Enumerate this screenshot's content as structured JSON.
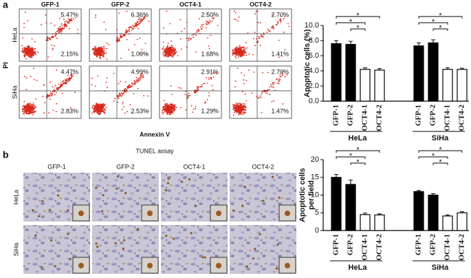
{
  "flow": {
    "label": "a",
    "y_label": "PI",
    "x_label": "Annexin V",
    "col_labels": [
      "GFP-1",
      "GFP-2",
      "OCT4-1",
      "OCT4-2"
    ],
    "row_labels": [
      "HeLa",
      "SiHa"
    ],
    "upper_right": [
      [
        "5.47%",
        "6.36%",
        "2.50%",
        "2.70%"
      ],
      [
        "4.47%",
        "4.99%",
        "2.91%",
        "2.70%"
      ]
    ],
    "lower_right": [
      [
        "2.15%",
        "1.09%",
        "1.68%",
        "1.41%"
      ],
      [
        "2.83%",
        "2.53%",
        "1.29%",
        "1.47%"
      ]
    ]
  },
  "tunel": {
    "label": "b",
    "title": "TUNEL assay",
    "col_labels": [
      "GFP-1",
      "GFP-2",
      "OCT4-1",
      "OCT4-2"
    ],
    "row_labels": [
      "HeLa",
      "SiHa"
    ]
  },
  "chart_data": [
    {
      "type": "bar",
      "y_label": "Apoptotic cells (%)",
      "ylim": [
        0,
        10
      ],
      "yticks": [
        {
          "value": 0,
          "label": "0.0"
        },
        {
          "value": 2,
          "label": "2.0"
        },
        {
          "value": 4,
          "label": "4.0"
        },
        {
          "value": 6,
          "label": "6.0"
        },
        {
          "value": 8,
          "label": "8.0"
        },
        {
          "value": 10,
          "label": "10.0"
        }
      ],
      "colors": [
        "#000000",
        "#000000",
        "#ffffff",
        "#ffffff"
      ],
      "groups": [
        {
          "name": "HeLa",
          "categories": [
            "GFP-1",
            "GFP-2",
            "OCT4-1",
            "OCT4-2"
          ],
          "values": [
            7.6,
            7.5,
            4.2,
            4.1
          ],
          "errors": [
            0.4,
            0.4,
            0.2,
            0.2
          ],
          "stars": [
            "*",
            "*",
            "*"
          ]
        },
        {
          "name": "SiHa",
          "categories": [
            "GFP-1",
            "GFP-2",
            "OCT4-1",
            "OCT4-2"
          ],
          "values": [
            7.3,
            7.7,
            4.2,
            4.2
          ],
          "errors": [
            0.4,
            0.4,
            0.2,
            0.15
          ],
          "stars": [
            "*",
            "*",
            "*"
          ]
        }
      ]
    },
    {
      "type": "bar",
      "y_label": [
        "Apoptotic cells",
        "per field"
      ],
      "ylim": [
        0,
        20
      ],
      "yticks": [
        0,
        5,
        10,
        15,
        20
      ],
      "colors": [
        "#000000",
        "#000000",
        "#ffffff",
        "#ffffff"
      ],
      "groups": [
        {
          "name": "HeLa",
          "categories": [
            "GFP-1",
            "GFP-2",
            "OCT4-1",
            "OCT4-2"
          ],
          "values": [
            15,
            13,
            4.5,
            4.4
          ],
          "errors": [
            0.8,
            1.2,
            0.4,
            0.3
          ],
          "stars": [
            "*",
            "*",
            "*"
          ]
        },
        {
          "name": "SiHa",
          "categories": [
            "GFP-1",
            "GFP-2",
            "OCT4-1",
            "OCT4-2"
          ],
          "values": [
            11,
            10,
            4.1,
            5.0
          ],
          "errors": [
            0.3,
            0.4,
            0.3,
            0.3
          ],
          "stars": [
            "*",
            "*",
            "*"
          ]
        }
      ]
    }
  ]
}
